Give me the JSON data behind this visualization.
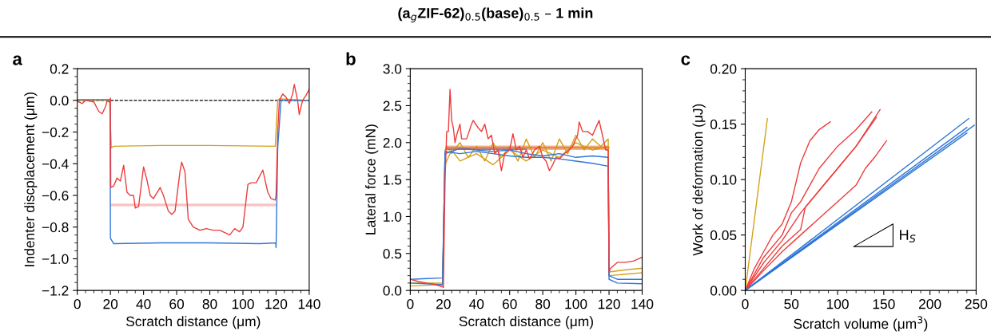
{
  "chart_data": [
    {
      "type": "line",
      "annotations": [
        "a"
      ],
      "xlabel": "Scratch distance (μm)",
      "ylabel": "Indenter discplacement (μm)",
      "xlim": [
        0,
        140
      ],
      "xticks": [
        0,
        20,
        40,
        60,
        80,
        100,
        120,
        140
      ],
      "ylim": [
        -1.2,
        0.2
      ],
      "yticks": [
        {
          "value": -1.2,
          "label": "−1.2"
        },
        {
          "value": -1.0,
          "label": "−1.0"
        },
        {
          "value": -0.8,
          "label": "−0.8"
        },
        {
          "value": -0.6,
          "label": "−0.6"
        },
        {
          "value": -0.4,
          "label": "−0.4"
        },
        {
          "value": -0.2,
          "label": "−0.2"
        },
        {
          "value": 0,
          "label": "0.0"
        },
        {
          "value": 0.2,
          "label": "0.2"
        }
      ],
      "ref_lines": [
        {
          "axis": "y",
          "value": 0,
          "color": "#000000",
          "line_style": "dashed"
        }
      ],
      "series": [
        {
          "color": "#f5b8b8",
          "x": [
            20,
            120
          ],
          "values": [
            -0.66,
            -0.66
          ],
          "lower": [
            -0.67,
            -0.67
          ],
          "upper": [
            -0.65,
            -0.65
          ]
        },
        {
          "color": "#d4a017",
          "x": [
            0,
            5,
            10,
            19.5,
            20.5,
            22,
            50,
            80,
            119.5,
            121,
            122,
            140
          ],
          "values": [
            0,
            0,
            0,
            0,
            -0.3,
            -0.29,
            -0.285,
            -0.285,
            -0.29,
            0.0,
            0.01,
            0.0
          ]
        },
        {
          "color": "#2f76d6",
          "x": [
            0,
            19.8,
            20,
            22,
            50,
            80,
            110,
            119.8,
            120,
            121,
            123,
            140
          ],
          "values": [
            0.005,
            0.005,
            -0.87,
            -0.905,
            -0.9,
            -0.9,
            -0.905,
            -0.9,
            -0.93,
            -0.3,
            0,
            0
          ]
        },
        {
          "color": "#ee3b3b",
          "x": [
            0,
            3,
            5,
            10,
            13,
            15,
            17,
            18,
            19.5,
            20,
            20.2,
            22,
            24,
            26,
            28,
            30,
            32,
            34,
            35,
            37,
            40,
            42,
            44,
            46,
            50,
            52,
            55,
            57,
            59,
            62,
            63,
            65,
            67,
            70,
            74,
            78,
            82,
            86,
            90,
            92,
            95,
            98,
            100,
            103,
            105,
            108,
            112,
            115,
            117,
            119.5,
            120,
            121,
            122,
            124,
            126,
            128,
            130,
            131,
            133,
            134,
            136,
            138,
            140
          ],
          "values": [
            -0.005,
            -0.02,
            0,
            -0.01,
            -0.07,
            -0.085,
            -0.04,
            -0.005,
            -0.01,
            0.015,
            -0.55,
            -0.54,
            -0.49,
            -0.51,
            -0.41,
            -0.58,
            -0.6,
            -0.6,
            -0.68,
            -0.67,
            -0.42,
            -0.5,
            -0.6,
            -0.62,
            -0.55,
            -0.6,
            -0.7,
            -0.72,
            -0.7,
            -0.45,
            -0.39,
            -0.45,
            -0.75,
            -0.8,
            -0.82,
            -0.81,
            -0.82,
            -0.82,
            -0.84,
            -0.85,
            -0.81,
            -0.83,
            -0.8,
            -0.53,
            -0.52,
            -0.52,
            -0.44,
            -0.58,
            -0.62,
            -0.63,
            -0.6,
            -0.2,
            0,
            0.04,
            0.02,
            -0.02,
            0.04,
            0.1,
            0.0,
            -0.09,
            0.0,
            0.03,
            0.07
          ]
        }
      ]
    },
    {
      "type": "line",
      "title": "(a$_{g}$ZIF-62)$_{0.5}$(base)$_{0.5}$ – 1 min",
      "annotations": [
        "b"
      ],
      "xlabel": "Scratch distance (μm)",
      "ylabel": "Lateral force (mN)",
      "xlim": [
        0,
        140
      ],
      "xticks": [
        0,
        20,
        40,
        60,
        80,
        100,
        120,
        140
      ],
      "ylim": [
        0,
        3.0
      ],
      "yticks": [
        {
          "value": 0,
          "label": "0.0"
        },
        0.5,
        {
          "value": 1,
          "label": "1.0"
        },
        1.5,
        {
          "value": 2,
          "label": "2.0"
        },
        2.5,
        {
          "value": 3,
          "label": "3.0"
        }
      ],
      "series": [
        {
          "color": "#d4a017",
          "x": [
            0,
            10,
            19.5,
            21,
            22,
            25,
            30,
            35,
            40,
            45,
            50,
            55,
            60,
            65,
            70,
            75,
            80,
            85,
            90,
            95,
            100,
            105,
            110,
            115,
            119.5,
            120,
            130,
            140
          ],
          "values": [
            0.06,
            0.07,
            0.08,
            1.9,
            1.95,
            1.85,
            2.0,
            1.8,
            1.95,
            1.75,
            2.0,
            1.8,
            1.95,
            1.75,
            2.05,
            1.8,
            2.0,
            1.75,
            2.05,
            1.85,
            2.1,
            1.9,
            2.05,
            1.95,
            2.05,
            0.25,
            0.28,
            0.3
          ]
        },
        {
          "color": "#d4a017",
          "x": [
            0,
            19.5,
            21,
            25,
            30,
            40,
            50,
            60,
            70,
            80,
            90,
            100,
            110,
            119.5,
            120,
            130,
            140
          ],
          "values": [
            0.1,
            0.1,
            1.7,
            1.9,
            1.75,
            1.85,
            1.7,
            1.9,
            1.75,
            1.9,
            1.8,
            2.0,
            1.9,
            1.95,
            0.2,
            0.22,
            0.24
          ]
        },
        {
          "color": "#2f76d6",
          "x": [
            0,
            10,
            19.5,
            21,
            30,
            40,
            50,
            60,
            70,
            80,
            90,
            100,
            110,
            119.5,
            120,
            125,
            140
          ],
          "values": [
            0.15,
            0.16,
            0.17,
            1.85,
            1.92,
            1.9,
            1.88,
            1.9,
            1.85,
            1.82,
            1.85,
            1.8,
            1.82,
            1.8,
            0.2,
            0.15,
            0.15
          ]
        },
        {
          "color": "#2f76d6",
          "x": [
            0,
            19.5,
            21,
            30,
            40,
            50,
            60,
            70,
            80,
            90,
            100,
            110,
            119.5,
            120,
            125,
            140
          ],
          "values": [
            0.1,
            0.08,
            1.88,
            1.85,
            1.88,
            1.85,
            1.82,
            1.8,
            1.8,
            1.78,
            1.75,
            1.72,
            1.68,
            0.15,
            0.1,
            0.09
          ]
        },
        {
          "color": "#e8742a",
          "x": [
            22,
            120
          ],
          "values": [
            1.93,
            1.93
          ],
          "lower": [
            1.9,
            1.9
          ],
          "upper": [
            1.96,
            1.96
          ]
        },
        {
          "color": "#8e5aa8",
          "x": [
            22,
            70
          ],
          "values": [
            1.91,
            1.91
          ]
        },
        {
          "color": "#ee3b3b",
          "x": [
            0,
            5,
            10,
            15,
            19.5,
            20,
            21,
            22,
            23,
            24,
            25,
            26,
            27,
            28,
            30,
            31,
            34,
            37,
            38,
            41,
            43,
            45,
            47,
            49,
            51,
            53,
            55,
            57,
            60,
            62,
            64,
            66,
            68,
            70,
            72,
            75,
            78,
            80,
            82,
            84,
            86,
            88,
            90,
            93,
            95,
            98,
            101,
            102,
            104,
            107,
            110,
            113,
            114,
            116,
            118,
            119.5,
            120,
            121,
            125,
            130,
            135,
            140
          ],
          "values": [
            0.15,
            0.12,
            0.1,
            0.08,
            0.05,
            0.04,
            1.5,
            2.15,
            2.15,
            2.72,
            2.3,
            2.2,
            2.0,
            2.1,
            2.25,
            2.05,
            2.05,
            2.25,
            2.3,
            2.2,
            2.15,
            2.25,
            2.05,
            2.1,
            1.85,
            1.9,
            1.62,
            1.85,
            1.9,
            2.12,
            1.9,
            1.95,
            1.8,
            1.9,
            1.78,
            1.9,
            1.95,
            1.8,
            1.75,
            1.62,
            1.7,
            1.8,
            1.78,
            1.85,
            1.88,
            1.95,
            2.1,
            2.28,
            2.15,
            2.15,
            2.1,
            2.25,
            2.3,
            2.1,
            1.9,
            1.9,
            0.25,
            0.3,
            0.38,
            0.38,
            0.4,
            0.45
          ]
        }
      ]
    },
    {
      "type": "line",
      "annotations": [
        "c",
        "H$_{S}$"
      ],
      "xlabel": "Scratch volume (μm$^{3}$)",
      "ylabel": "Work of deformation (μJ)",
      "xlim": [
        0,
        250
      ],
      "xticks": [
        0,
        50,
        100,
        150,
        200,
        250
      ],
      "ylim": [
        0,
        0.2
      ],
      "yticks": [
        {
          "value": 0,
          "label": "0.00"
        },
        {
          "value": 0.05,
          "label": "0.05"
        },
        {
          "value": 0.1,
          "label": "0.10"
        },
        {
          "value": 0.15,
          "label": "0.15"
        },
        {
          "value": 0.2,
          "label": "0.20"
        }
      ],
      "series": [
        {
          "color": "#d4a017",
          "x": [
            0,
            24
          ],
          "values": [
            0,
            0.155
          ]
        },
        {
          "color": "#ee3b3b",
          "x": [
            0,
            10,
            20,
            30,
            40,
            50,
            60,
            70,
            80,
            92
          ],
          "values": [
            0,
            0.02,
            0.035,
            0.05,
            0.06,
            0.08,
            0.115,
            0.135,
            0.145,
            0.152
          ]
        },
        {
          "color": "#ee3b3b",
          "x": [
            0,
            20,
            40,
            50,
            60,
            70,
            80,
            100,
            120,
            137
          ],
          "values": [
            0,
            0.03,
            0.05,
            0.07,
            0.08,
            0.095,
            0.11,
            0.13,
            0.145,
            0.161
          ]
        },
        {
          "color": "#ee3b3b",
          "x": [
            0,
            20,
            40,
            60,
            80,
            100,
            120,
            146
          ],
          "values": [
            0,
            0.025,
            0.045,
            0.07,
            0.09,
            0.11,
            0.13,
            0.163
          ]
        },
        {
          "color": "#ee3b3b",
          "x": [
            0,
            20,
            40,
            60,
            65,
            80,
            100,
            120,
            142
          ],
          "values": [
            0,
            0.02,
            0.04,
            0.055,
            0.075,
            0.09,
            0.11,
            0.13,
            0.156
          ]
        },
        {
          "color": "#ee3b3b",
          "x": [
            0,
            20,
            40,
            60,
            80,
            100,
            120,
            130,
            140,
            153
          ],
          "values": [
            0,
            0.018,
            0.035,
            0.05,
            0.065,
            0.08,
            0.095,
            0.11,
            0.12,
            0.135
          ]
        },
        {
          "color": "#2f76d6",
          "x": [
            0,
            242
          ],
          "values": [
            0,
            0.155
          ]
        },
        {
          "color": "#2f76d6",
          "x": [
            0,
            248
          ],
          "values": [
            0,
            0.149
          ]
        },
        {
          "color": "#2f76d6",
          "x": [
            0,
            240
          ],
          "values": [
            0,
            0.147
          ]
        },
        {
          "color": "#2f76d6",
          "x": [
            0,
            240
          ],
          "values": [
            0,
            0.142
          ]
        }
      ]
    }
  ]
}
